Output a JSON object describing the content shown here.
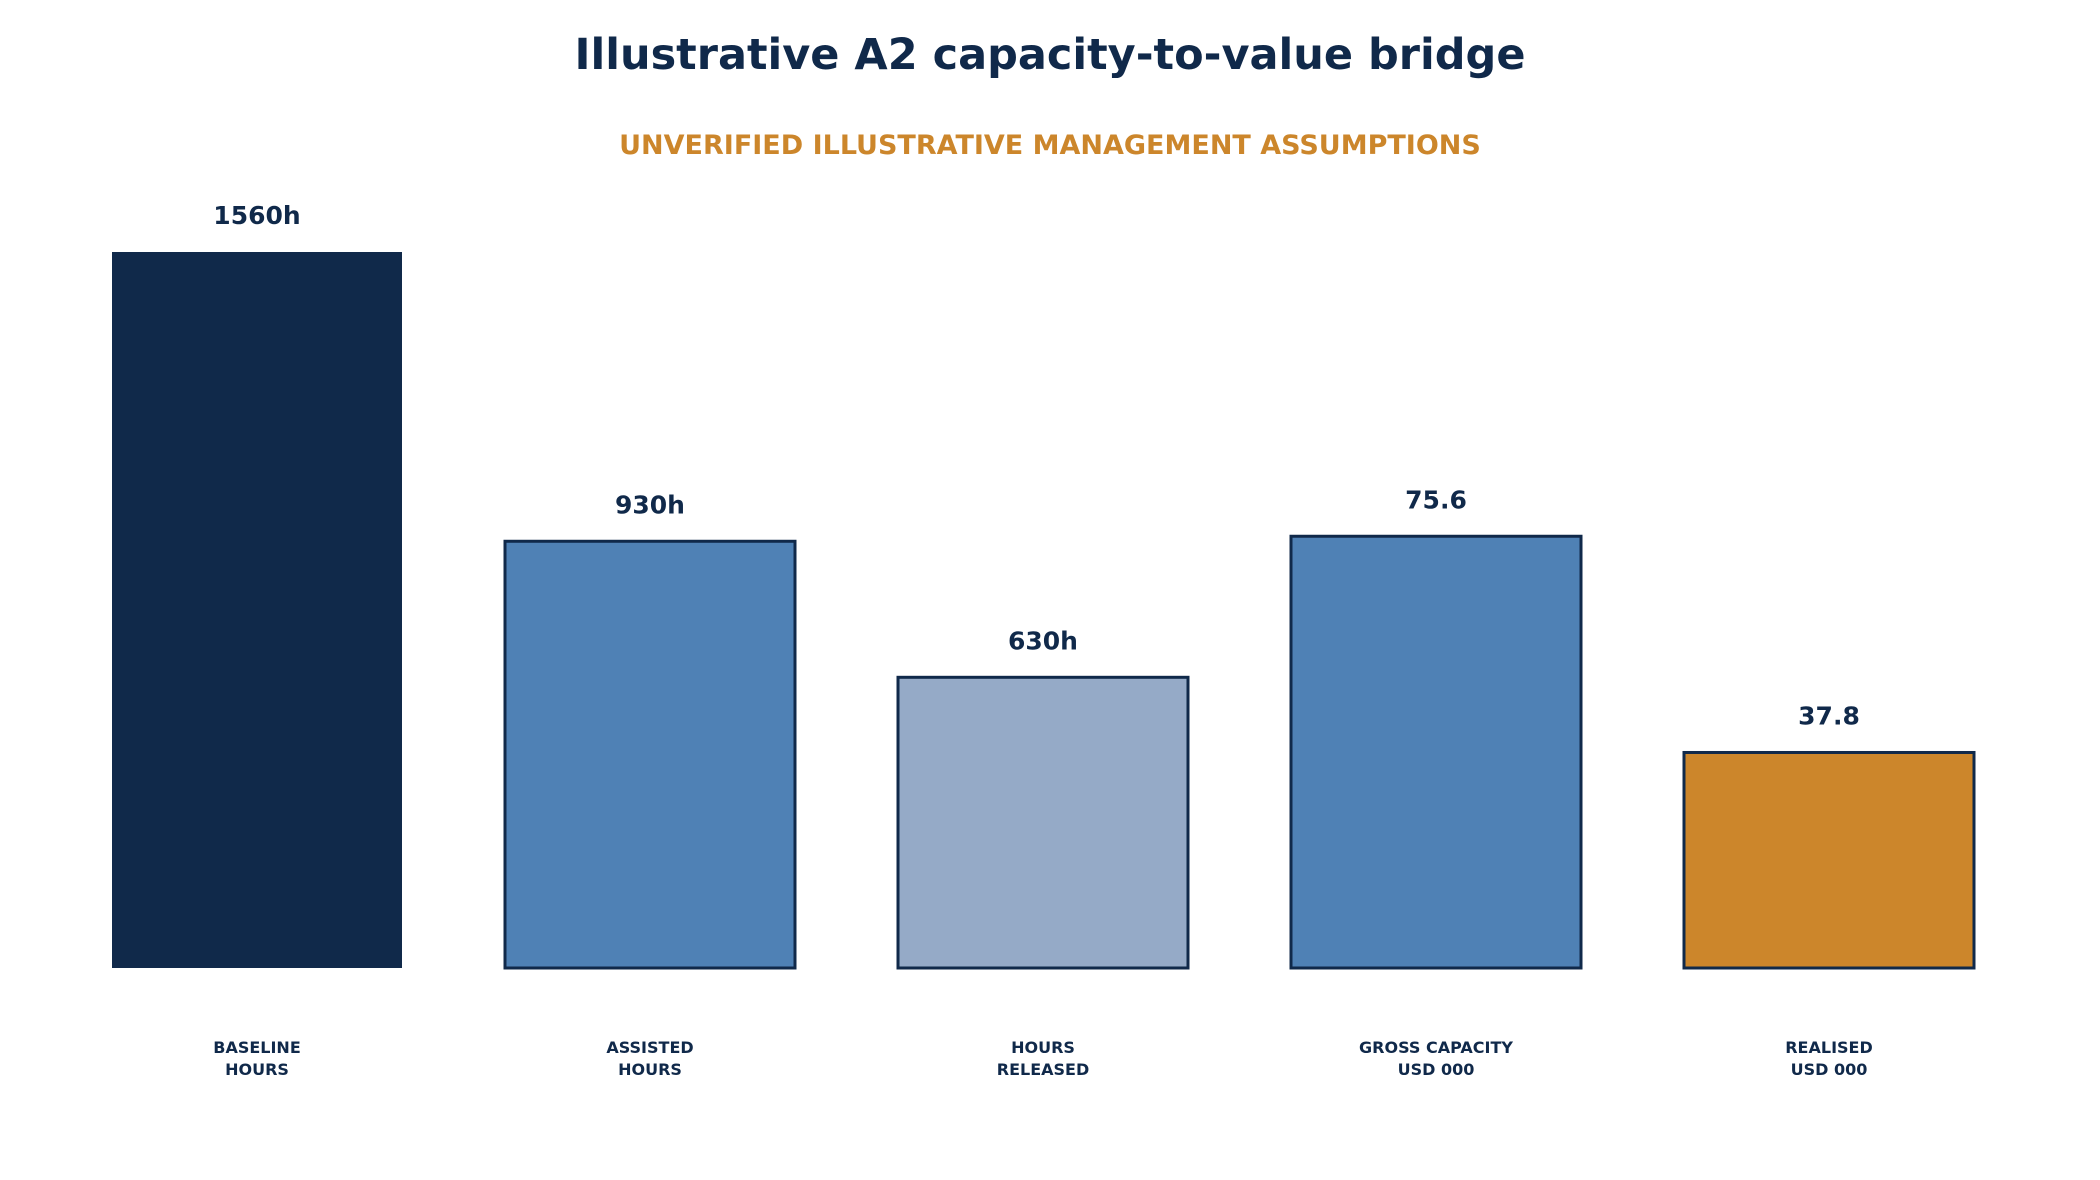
{
  "chart_data": {
    "type": "bar",
    "title": "Illustrative A2 capacity-to-value bridge",
    "subtitle": "UNVERIFIED ILLUSTRATIVE MANAGEMENT ASSUMPTIONS",
    "xlabel": "",
    "ylabel": "",
    "grid": false,
    "legend": "none",
    "categories": [
      [
        "BASELINE",
        "HOURS"
      ],
      [
        "ASSISTED",
        "HOURS"
      ],
      [
        "HOURS",
        "RELEASED"
      ],
      [
        "GROSS CAPACITY",
        "USD 000"
      ],
      [
        "REALISED",
        "USD 000"
      ]
    ],
    "bars": [
      {
        "value": 1560,
        "unit": "hours",
        "label": "1560h",
        "color": "#10294a",
        "relative_height": 1.0
      },
      {
        "value": 930,
        "unit": "hours",
        "label": "930h",
        "color": "#4f81b5",
        "relative_height": 0.596
      },
      {
        "value": 630,
        "unit": "hours",
        "label": "630h",
        "color": "#95aac7",
        "relative_height": 0.406
      },
      {
        "value": 75.6,
        "unit": "USD 000",
        "label": "75.6",
        "color": "#4f81b5",
        "relative_height": 0.603
      },
      {
        "value": 37.8,
        "unit": "USD 000",
        "label": "37.8",
        "color": "#cc862b",
        "relative_height": 0.301
      }
    ],
    "colors": {
      "title": "#10294a",
      "subtitle": "#cc862b",
      "bar_outline": "#10294a"
    }
  }
}
